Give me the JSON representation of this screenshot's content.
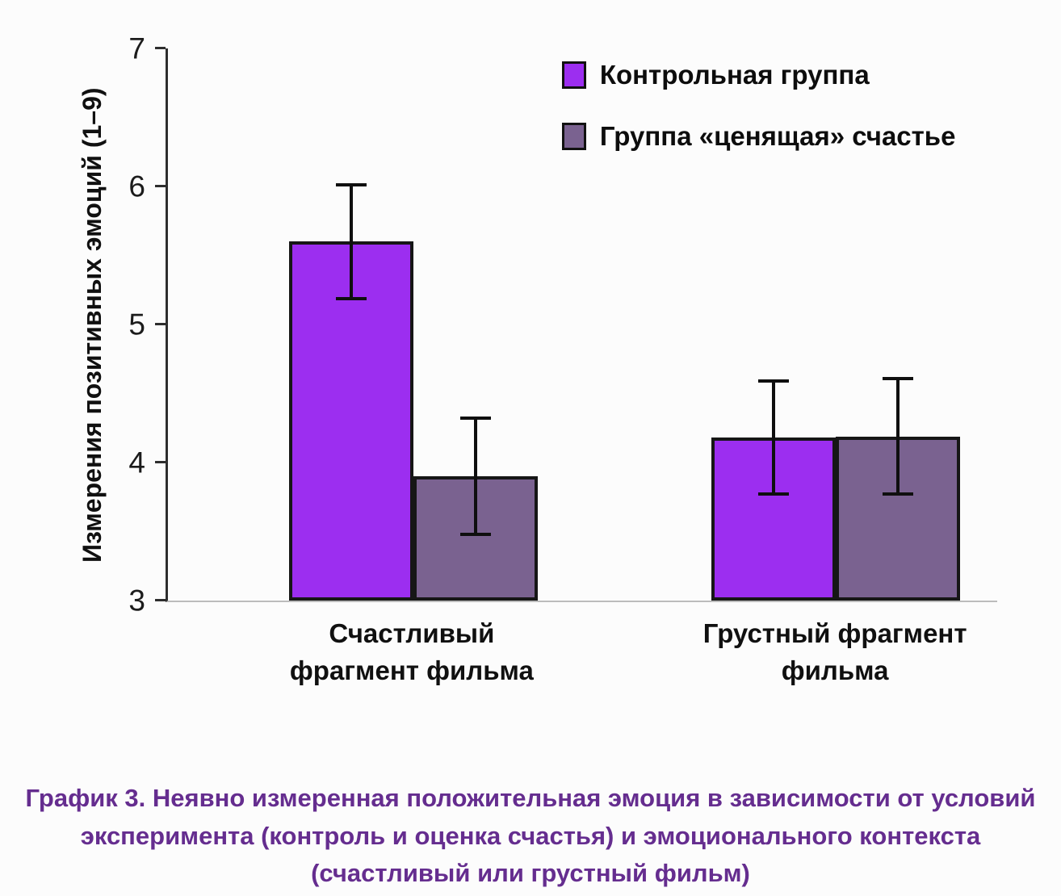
{
  "chart_data": {
    "type": "bar",
    "title": "",
    "categories": [
      "Счастливый\nфрагмент фильма",
      "Грустный фрагмент\nфильма"
    ],
    "series": [
      {
        "name": "Контрольная группа",
        "color": "#9C2EF0",
        "values": [
          5.6,
          4.18
        ],
        "errors": [
          0.41,
          0.41
        ]
      },
      {
        "name": "Группа «ценящая» счастье",
        "color": "#7A6290",
        "values": [
          3.9,
          4.19
        ],
        "errors": [
          0.42,
          0.42
        ]
      }
    ],
    "ylabel": "Измерения позитивных эмоций (1–9)",
    "xlabel": "",
    "ylim": [
      3,
      7
    ],
    "yticks": [
      3,
      4,
      5,
      6,
      7
    ],
    "grid": false,
    "legend_position": "top-right",
    "colors": {
      "axis": "#2e2e2e",
      "baseline": "#bcbcbc",
      "error_bar": "#0f0f0f",
      "bar_outline": "#161616"
    }
  },
  "caption": "График 3. Неявно измеренная положительная эмоция в зависимости от условий эксперимента (контроль и оценка счастья) и эмоционального контекста (счастливый или грустный фильм)"
}
